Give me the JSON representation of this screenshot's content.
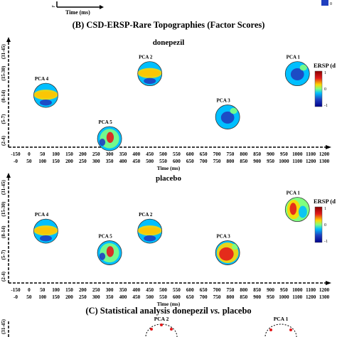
{
  "panel_a_fragment": {
    "time_label": "Time (ms)",
    "ylabel_fragment": "F",
    "colorbar_tick": "0"
  },
  "panel_b": {
    "title": "(B) CSD-ERSP-Rare Topographies (Factor Scores)",
    "legend_title": "ERSP (d",
    "colorbar_ticks": [
      "1",
      "0",
      "-1"
    ],
    "colormap": [
      "#8b0000",
      "#e31a1c",
      "#ffd700",
      "#7fff7f",
      "#00bfff",
      "#1f3fbf",
      "#00008b"
    ],
    "y_axis_bands": [
      "(2-4)",
      "(5-7)",
      "(8-14)",
      "(15-30)",
      "(31-45)"
    ],
    "x_ticks_top": [
      "-150",
      "0",
      "50",
      "100",
      "150",
      "200",
      "250",
      "300",
      "350",
      "400",
      "450",
      "500",
      "550",
      "600",
      "650",
      "700",
      "750",
      "800",
      "850",
      "900",
      "950",
      "1000",
      "1100",
      "1200"
    ],
    "x_ticks_bottom": [
      "-0",
      "50",
      "100",
      "150",
      "200",
      "250",
      "300",
      "350",
      "400",
      "450",
      "500",
      "550",
      "600",
      "650",
      "700",
      "750",
      "800",
      "850",
      "900",
      "950",
      "1000",
      "1100",
      "1200",
      "1300"
    ],
    "xlabel": "Time (ms)"
  },
  "chart_data": [
    {
      "type": "scatter",
      "subtitle": "donepezil",
      "xlabel": "Time (ms)",
      "points": [
        {
          "label": "PCA 4",
          "x": 62.5,
          "y": "(8-14)",
          "pattern": "band"
        },
        {
          "label": "PCA 5",
          "x": 300,
          "y": "(2-4)",
          "pattern": "central"
        },
        {
          "label": "PCA 2",
          "x": 450,
          "y": "(15-30)",
          "pattern": "band"
        },
        {
          "label": "PCA 3",
          "x": 740,
          "y": "(5-7)",
          "pattern": "blue"
        },
        {
          "label": "PCA 1",
          "x": 1000,
          "y": "(15-30)",
          "pattern": "blue"
        }
      ]
    },
    {
      "type": "scatter",
      "subtitle": "placebo",
      "xlabel": "Time (ms)",
      "points": [
        {
          "label": "PCA 4",
          "x": 62.5,
          "y": "(8-14)",
          "pattern": "band"
        },
        {
          "label": "PCA 5",
          "x": 300,
          "y": "(5-7)",
          "pattern": "central"
        },
        {
          "label": "PCA 2",
          "x": 450,
          "y": "(8-14)",
          "pattern": "band"
        },
        {
          "label": "PCA 3",
          "x": 740,
          "y": "(5-7)",
          "pattern": "warm"
        },
        {
          "label": "PCA 1",
          "x": 1000,
          "y": "(15-30)",
          "pattern": "mixed"
        }
      ]
    }
  ],
  "panel_c": {
    "title_prefix": "(C) Statistical analysis donepezil",
    "title_vs": "vs.",
    "title_suffix": "placebo",
    "y_axis_band": "(31-45)",
    "labels": [
      "PCA 2",
      "PCA 1"
    ]
  }
}
